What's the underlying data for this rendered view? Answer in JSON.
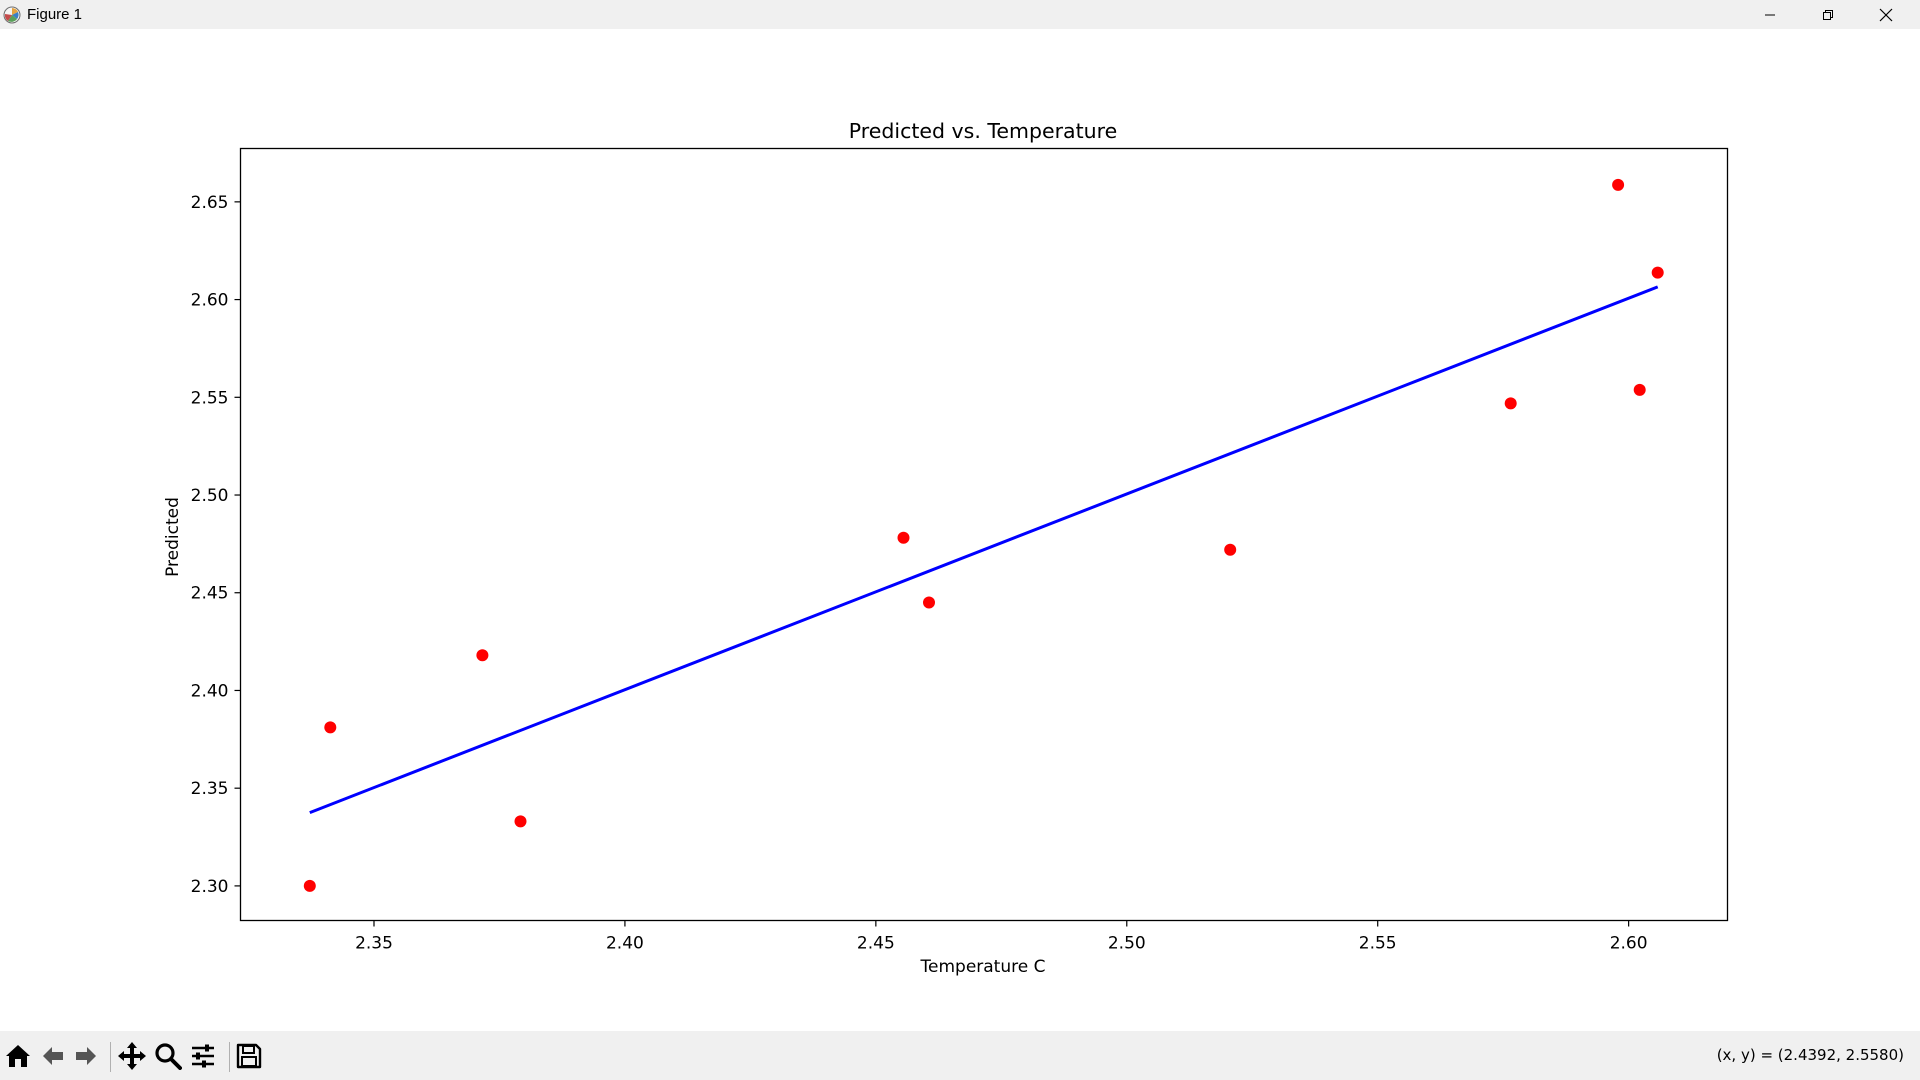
{
  "window": {
    "title": "Figure 1",
    "icon": "matplotlib-icon",
    "controls": [
      "minimize-icon",
      "restore-icon",
      "close-icon"
    ]
  },
  "toolbar": {
    "tools": [
      "home-icon",
      "back-icon",
      "forward-icon",
      "pan-icon",
      "zoom-icon",
      "configure-icon",
      "save-icon"
    ],
    "coordinates": "(x, y) = (2.4392, 2.5580)"
  },
  "colors": {
    "points": "#ff0000",
    "line": "#0000ff",
    "axes": "#000000"
  },
  "chart_data": {
    "type": "scatter",
    "title": "Predicted vs. Temperature",
    "xlabel": "Temperature C",
    "ylabel": "Predicted",
    "xlim": [
      2.3234,
      2.6197
    ],
    "ylim": [
      2.2823,
      2.6773
    ],
    "x_ticks": [
      2.35,
      2.4,
      2.45,
      2.5,
      2.55,
      2.6
    ],
    "x_tick_labels": [
      "2.35",
      "2.40",
      "2.45",
      "2.50",
      "2.55",
      "2.60"
    ],
    "y_ticks": [
      2.3,
      2.35,
      2.4,
      2.45,
      2.5,
      2.55,
      2.6,
      2.65
    ],
    "y_tick_labels": [
      "2.30",
      "2.35",
      "2.40",
      "2.45",
      "2.50",
      "2.55",
      "2.60",
      "2.65"
    ],
    "grid": false,
    "series": [
      {
        "kind": "scatter",
        "color": "#ff0000",
        "x": [
          2.3372,
          2.3413,
          2.3716,
          2.3792,
          2.4555,
          2.4606,
          2.5206,
          2.5765,
          2.5979,
          2.6022,
          2.6058
        ],
        "y": [
          2.3,
          2.3811,
          2.418,
          2.333,
          2.4781,
          2.445,
          2.472,
          2.5469,
          2.6587,
          2.5538,
          2.6138
        ]
      },
      {
        "kind": "line",
        "color": "#0000ff",
        "x": [
          2.3372,
          2.6058
        ],
        "y": [
          2.3375,
          2.6065
        ]
      }
    ]
  }
}
